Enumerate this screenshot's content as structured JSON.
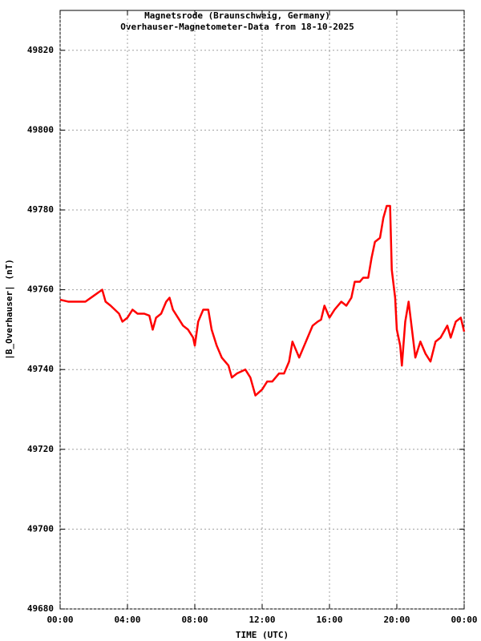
{
  "chart_data": {
    "type": "line",
    "title": "Magnetsrode (Braunschweig, Germany)",
    "subtitle": "Overhauser-Magnetometer-Data from 18-10-2025",
    "x_label": "TIME (UTC)",
    "y_label": "|B_Overhauser| (nT)",
    "x": [
      0,
      0.5,
      1,
      1.5,
      2,
      2.5,
      2.7,
      3,
      3.5,
      3.7,
      4,
      4.3,
      4.6,
      5,
      5.3,
      5.5,
      5.7,
      6,
      6.3,
      6.5,
      6.7,
      7,
      7.3,
      7.6,
      7.9,
      8.0,
      8.2,
      8.5,
      8.8,
      9.0,
      9.3,
      9.6,
      10,
      10.2,
      10.5,
      11,
      11.3,
      11.6,
      12,
      12.3,
      12.6,
      13,
      13.3,
      13.6,
      13.8,
      14,
      14.2,
      14.5,
      15,
      15.3,
      15.5,
      15.7,
      16,
      16.3,
      16.7,
      17,
      17.3,
      17.5,
      17.8,
      18,
      18.3,
      18.5,
      18.7,
      19,
      19.2,
      19.4,
      19.6,
      19.7,
      19.9,
      20.0,
      20.2,
      20.3,
      20.5,
      20.7,
      20.9,
      21.1,
      21.4,
      21.7,
      22,
      22.3,
      22.6,
      23,
      23.2,
      23.5,
      23.8,
      24
    ],
    "series": [
      {
        "name": "|B_Overhauser|",
        "color": "#ff0000",
        "values": [
          49757.5,
          49757,
          49757,
          49757,
          49758.5,
          49760,
          49757,
          49756,
          49754,
          49752,
          49753,
          49755,
          49754,
          49754,
          49753.5,
          49750,
          49753,
          49754,
          49757,
          49758,
          49755,
          49753,
          49751,
          49750,
          49748,
          49746,
          49752,
          49755,
          49755,
          49750,
          49746,
          49743,
          49741,
          49738,
          49739,
          49740,
          49738,
          49733.5,
          49735,
          49737,
          49737,
          49739,
          49739,
          49742,
          49747,
          49745,
          49743,
          49746,
          49751,
          49752,
          49752.5,
          49756,
          49753,
          49755,
          49757,
          49756,
          49758,
          49762,
          49762,
          49763,
          49763,
          49768,
          49772,
          49773,
          49778,
          49781,
          49781,
          49765,
          49758,
          49750,
          49746,
          49741,
          49752,
          49757,
          49750,
          49743,
          49747,
          49744,
          49742,
          49747,
          49748,
          49751,
          49748,
          49752,
          49753,
          49749.5
        ]
      }
    ],
    "xlim": [
      0,
      24
    ],
    "xticks": [
      {
        "value": 0,
        "label": "00:00"
      },
      {
        "value": 4,
        "label": "04:00"
      },
      {
        "value": 8,
        "label": "08:00"
      },
      {
        "value": 12,
        "label": "12:00"
      },
      {
        "value": 16,
        "label": "16:00"
      },
      {
        "value": 20,
        "label": "20:00"
      },
      {
        "value": 24,
        "label": "00:00"
      }
    ],
    "ylim": [
      49680,
      49830
    ],
    "yticks": [
      49680,
      49700,
      49720,
      49740,
      49760,
      49780,
      49800,
      49820
    ],
    "grid": true
  }
}
